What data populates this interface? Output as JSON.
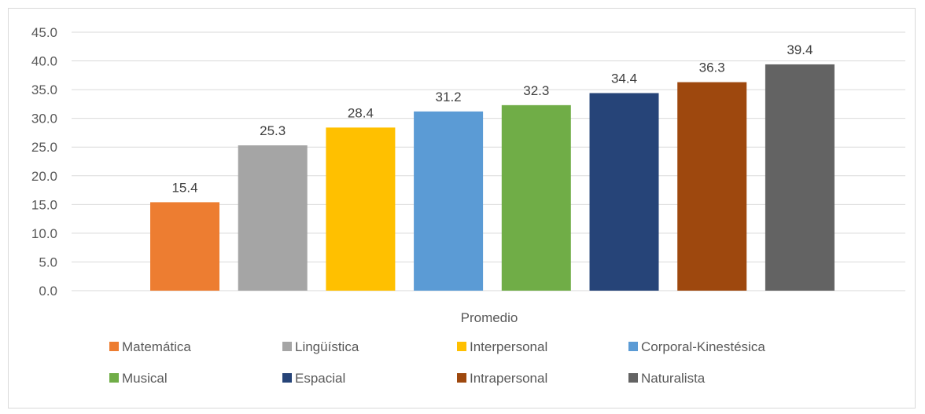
{
  "chart_data": {
    "type": "bar",
    "xlabel": "Promedio",
    "ylabel": "",
    "ylim": [
      0,
      45
    ],
    "y_ticks": [
      "0.0",
      "5.0",
      "10.0",
      "15.0",
      "20.0",
      "25.0",
      "30.0",
      "35.0",
      "40.0",
      "45.0"
    ],
    "grid": true,
    "legend_position": "bottom",
    "series": [
      {
        "name": "Matemática",
        "values": [
          15.4
        ],
        "label": "15.4",
        "color": "#ED7D31"
      },
      {
        "name": "Lingüística",
        "values": [
          25.3
        ],
        "label": "25.3",
        "color": "#A5A5A5"
      },
      {
        "name": "Interpersonal",
        "values": [
          28.4
        ],
        "label": "28.4",
        "color": "#FFC000"
      },
      {
        "name": "Corporal-Kinestésica",
        "values": [
          31.2
        ],
        "label": "31.2",
        "color": "#5B9BD5"
      },
      {
        "name": "Musical",
        "values": [
          32.3
        ],
        "label": "32.3",
        "color": "#70AD47"
      },
      {
        "name": "Espacial",
        "values": [
          34.4
        ],
        "label": "34.4",
        "color": "#264478"
      },
      {
        "name": "Intrapersonal",
        "values": [
          36.3
        ],
        "label": "36.3",
        "color": "#9E480E"
      },
      {
        "name": "Naturalista",
        "values": [
          39.4
        ],
        "label": "39.4",
        "color": "#636363"
      }
    ]
  }
}
